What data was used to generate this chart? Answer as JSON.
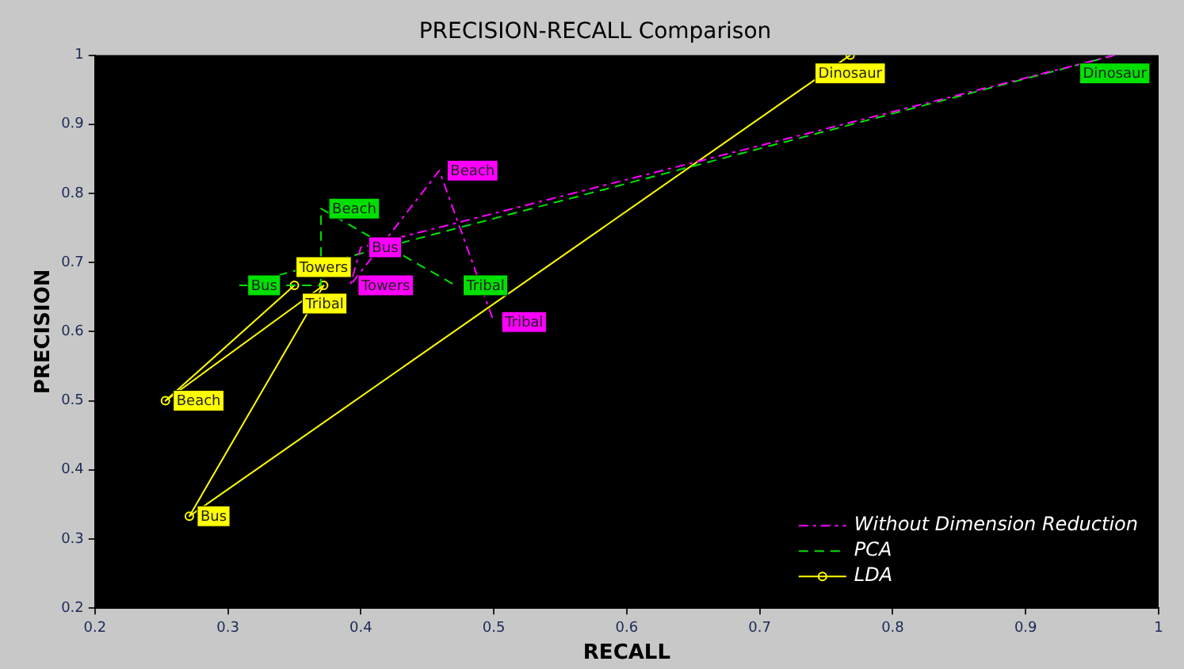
{
  "chart_data": {
    "type": "line",
    "title": "PRECISION-RECALL Comparison",
    "xlabel": "RECALL",
    "ylabel": "PRECISION",
    "xlim": [
      0.2,
      1
    ],
    "ylim": [
      0.2,
      1
    ],
    "xticks": [
      0.2,
      0.3,
      0.4,
      0.5,
      0.6,
      0.7,
      0.8,
      0.9,
      1
    ],
    "yticks": [
      0.2,
      0.3,
      0.4,
      0.5,
      0.6,
      0.7,
      0.8,
      0.9,
      1
    ],
    "grid": false,
    "legend": "bottom right",
    "series": [
      {
        "name": "Without Dimension Reduction",
        "color": "#ff00ff",
        "line_style": "dashdot",
        "marker": "none",
        "x": [
          0.967,
          0.4,
          0.392,
          0.459,
          0.5
        ],
        "values": [
          1,
          0.722,
          0.667,
          0.833,
          0.614
        ],
        "value_labels": [
          null,
          "Bus",
          "Towers",
          "Beach",
          "Tribal"
        ]
      },
      {
        "name": "PCA",
        "color": "#00e000",
        "line_style": "dashed",
        "marker": "none",
        "x": [
          0.967,
          0.309,
          0.37,
          0.37,
          0.471
        ],
        "values": [
          1,
          0.667,
          0.667,
          0.778,
          0.667
        ],
        "value_labels": [
          "Dinosaur",
          "Bus",
          null,
          "Beach",
          "Tribal"
        ]
      },
      {
        "name": "LDA",
        "color": "#ffff00",
        "line_style": "solid",
        "marker": "circle",
        "x": [
          0.35,
          0.253,
          0.372,
          0.271,
          0.768
        ],
        "values": [
          0.667,
          0.5,
          0.667,
          0.333,
          1
        ],
        "value_labels": [
          "Tribal",
          "Beach",
          "Towers",
          "Bus",
          "Dinosaur"
        ]
      }
    ]
  }
}
